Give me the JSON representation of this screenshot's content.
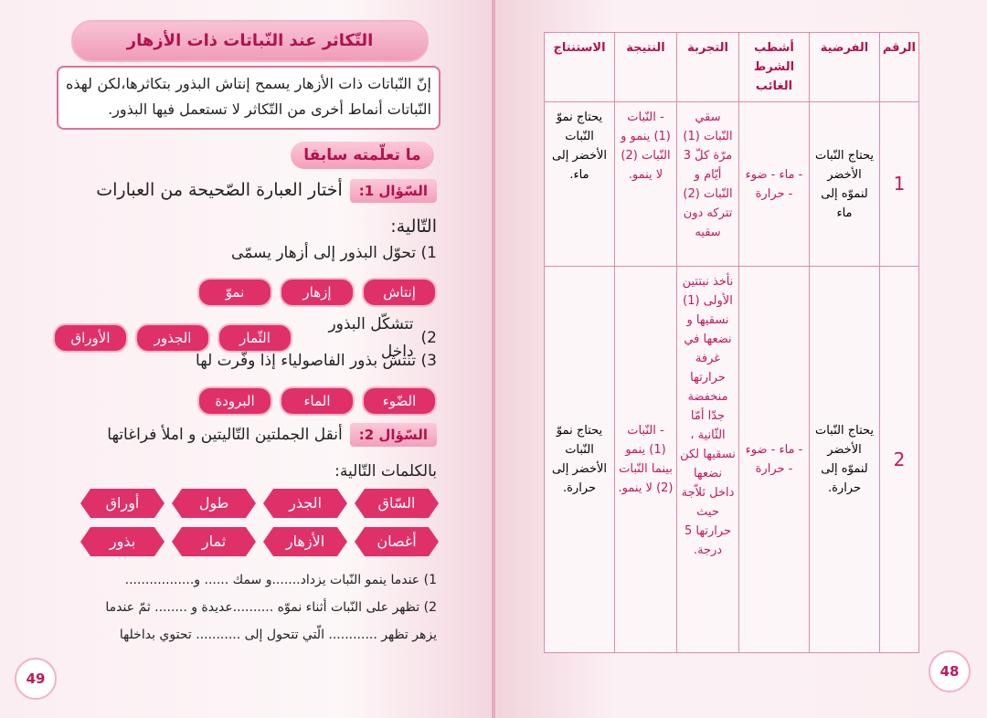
{
  "left_page": {
    "title": "التّكاثر عند النّباتات ذات الأزهار",
    "intro": "إنّ النّباتات ذات الأزهار يسمح إنتاش البذور بتكاثرها،لكن لهذه النّباتات أنماط أخرى من التّكاثر لا تستعمل فيها البذور.",
    "section_heading": "ما تعلّمته سابقا",
    "question_1": {
      "label": "السّؤال 1:",
      "prompt": "أختار العبارة الصّحيحة من العبارات التّالية:",
      "items": [
        {
          "number": "1)",
          "text": "تحوّل البذور إلى أزهار يسمّى",
          "options": [
            "إنتاش",
            "إزهار",
            "نموّ"
          ]
        },
        {
          "number": "2)",
          "text": "تتشكّل البذور داخل",
          "options": [
            "الثّمار",
            "الجذور",
            "الأوراق"
          ]
        },
        {
          "number": "3)",
          "text": "تنتش بذور الفاصولياء إذا وفّرت لها",
          "options": [
            "الضّوء",
            "الماء",
            "البرودة"
          ]
        }
      ]
    },
    "question_2": {
      "label": "السّؤال 2:",
      "prompt": "أنقل الجملتين التّاليتين و املأ فراغاتها بالكلمات التّالية:",
      "words": [
        "السّاق",
        "الجذر",
        "طول",
        "أوراق",
        "أغصان",
        "الأزهار",
        "ثمار",
        "بذور"
      ],
      "sentences": [
        {
          "number": "1)",
          "lines": [
            "عندما ينمو النّبات يزداد.......و سمك ...... و................."
          ]
        },
        {
          "number": "2)",
          "lines": [
            "تظهر على النّبات أثناء نموّه ..........عديدة و ........ ثمّ عندما",
            "يزهر تظهر ............ الّتي تتحول إلى ........... تحتوي بداخلها"
          ]
        }
      ]
    },
    "page_number": 49
  },
  "right_page": {
    "table": {
      "headers": [
        "الرقم",
        "الفرضية",
        "أشطب الشرط الغائب",
        "التجربة",
        "النتيجة",
        "الاستنتاج"
      ],
      "rows": [
        [
          1,
          "يحتاج النّبات الأخضر لنموّه إلى ماء",
          "- ماء - ضوء - حرارة",
          "سقي النّبات (1) مرّة كلّ 3 أيّام و النّبات (2) تتركه دون سقيه",
          "- النّبات (1) ينمو و النّبات (2) لا ينمو.",
          "يحتاج نموّ النّبات الأخضر إلى ماء."
        ],
        [
          2,
          "يحتاج النّبات الأخضر لنموّه إلى حرارة.",
          "- ماء - ضوء - حرارة",
          "نأخذ نبتتين الأولى (1) نسقيها و نضعها في غرفة حرارتها منخفضة جدّا أمّا الثّانية ، نسقيها لكن نضعها داخل ثلاّجة حيث حرارتها 5 درجة.",
          "- النّبات (1) ينمو بينما النّبات (2) لا ينمو.",
          "يحتاج نموّ النّبات الأخضر إلى حرارة."
        ]
      ]
    },
    "page_number": 48
  }
}
